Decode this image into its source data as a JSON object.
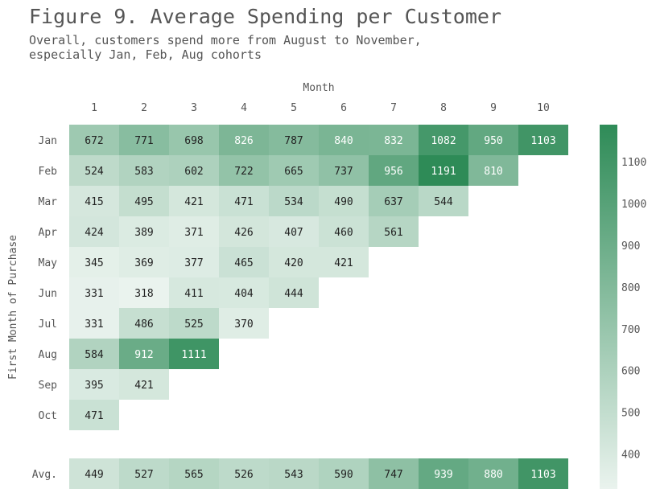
{
  "title": "Figure 9. Average Spending per Customer",
  "subtitle_lines": [
    "Overall, customers spend more from August to November,",
    "especially Jan, Feb, Aug cohorts"
  ],
  "chart_data": {
    "type": "heatmap",
    "xlabel": "Month",
    "ylabel": "First Month of Purchase",
    "columns": [
      "1",
      "2",
      "3",
      "4",
      "5",
      "6",
      "7",
      "8",
      "9",
      "10"
    ],
    "rows": [
      {
        "label": "Jan",
        "values": [
          672,
          771,
          698,
          826,
          787,
          840,
          832,
          1082,
          950,
          1103
        ]
      },
      {
        "label": "Feb",
        "values": [
          524,
          583,
          602,
          722,
          665,
          737,
          956,
          1191,
          810
        ]
      },
      {
        "label": "Mar",
        "values": [
          415,
          495,
          421,
          471,
          534,
          490,
          637,
          544
        ]
      },
      {
        "label": "Apr",
        "values": [
          424,
          389,
          371,
          426,
          407,
          460,
          561
        ]
      },
      {
        "label": "May",
        "values": [
          345,
          369,
          377,
          465,
          420,
          421
        ]
      },
      {
        "label": "Jun",
        "values": [
          331,
          318,
          411,
          404,
          444
        ]
      },
      {
        "label": "Jul",
        "values": [
          331,
          486,
          525,
          370
        ]
      },
      {
        "label": "Aug",
        "values": [
          584,
          912,
          1111
        ]
      },
      {
        "label": "Sep",
        "values": [
          395,
          421
        ]
      },
      {
        "label": "Oct",
        "values": [
          471
        ]
      }
    ],
    "average_row": {
      "label": "Avg.",
      "values": [
        449,
        527,
        565,
        526,
        543,
        590,
        747,
        939,
        880,
        1103
      ]
    },
    "colorbar": {
      "min": 318,
      "max": 1191,
      "ticks": [
        400,
        500,
        600,
        700,
        800,
        900,
        1000,
        1100
      ],
      "color_low": "#eaf3ee",
      "color_high": "#2e8b57"
    },
    "text_color_dark": "#222222",
    "text_color_light": "#ffffff"
  }
}
